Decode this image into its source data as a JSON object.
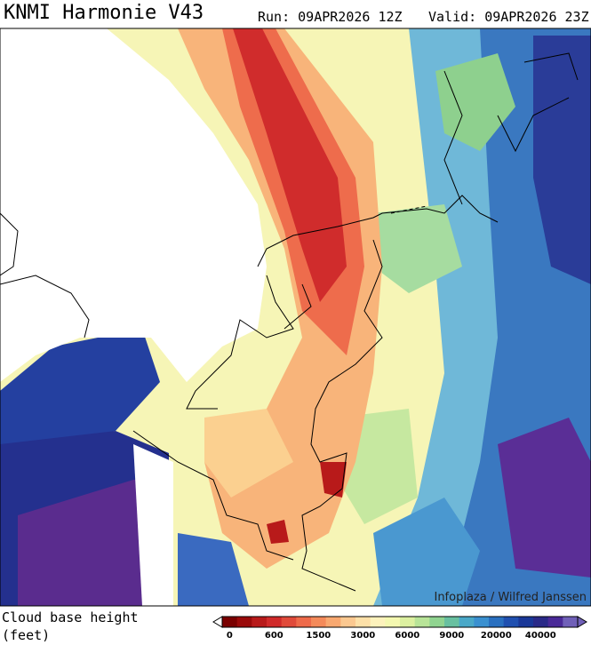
{
  "header": {
    "title": "KNMI Harmonie V43",
    "run": "Run: 09APR2026 12Z",
    "valid": "Valid: 09APR2026 23Z"
  },
  "credit": "Infoplaza / Wilfred Janssen",
  "legend": {
    "title": [
      "Cloud base height",
      "(feet)"
    ],
    "colors": [
      "#7a0000",
      "#9a0a0a",
      "#b81a1a",
      "#d02a2a",
      "#e04a3a",
      "#ee6a4a",
      "#f48a5a",
      "#f8a870",
      "#fbc890",
      "#fde0a8",
      "#fdf2bc",
      "#f4f8b0",
      "#dcf0a0",
      "#b8e498",
      "#90d490",
      "#68c0a0",
      "#4aa8c8",
      "#3a90d0",
      "#2a70c0",
      "#2050b0",
      "#1a3898",
      "#2a2a88",
      "#4a2a98",
      "#7060b8"
    ],
    "ticks": [
      "0",
      "600",
      "1500",
      "3000",
      "6000",
      "9000",
      "20000",
      "40000"
    ]
  }
}
